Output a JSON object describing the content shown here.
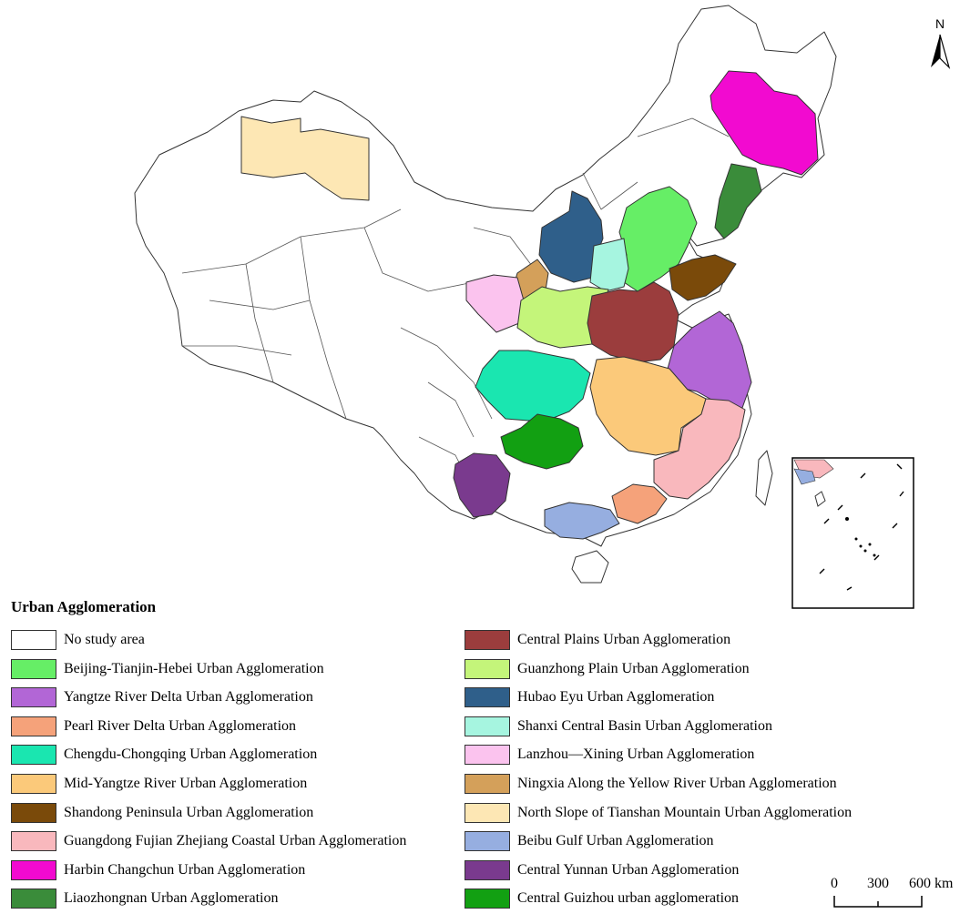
{
  "legend": {
    "title": "Urban Agglomeration",
    "items": [
      {
        "label": "No study area",
        "color": "#ffffff"
      },
      {
        "label": "Beijing-Tianjin-Hebei Urban Agglomeration",
        "color": "#66ee66"
      },
      {
        "label": "Yangtze River Delta Urban Agglomeration",
        "color": "#b266d6"
      },
      {
        "label": "Pearl River Delta Urban Agglomeration",
        "color": "#f5a27a"
      },
      {
        "label": "Chengdu-Chongqing Urban Agglomeration",
        "color": "#1ae6b0"
      },
      {
        "label": "Mid-Yangtze River Urban Agglomeration",
        "color": "#fbc97a"
      },
      {
        "label": "Shandong Peninsula Urban Agglomeration",
        "color": "#7a4a0a"
      },
      {
        "label": "Guangdong Fujian Zhejiang Coastal Urban Agglomeration",
        "color": "#f9b8bd"
      },
      {
        "label": "Harbin Changchun Urban Agglomeration",
        "color": "#f20ad0"
      },
      {
        "label": "Liaozhongnan Urban Agglomeration",
        "color": "#3a8c3a"
      },
      {
        "label": "Central Plains Urban Agglomeration",
        "color": "#9b3d3d"
      },
      {
        "label": "Guanzhong Plain Urban Agglomeration",
        "color": "#c4f57a"
      },
      {
        "label": "Hubao Eyu Urban Agglomeration",
        "color": "#2f5f8a"
      },
      {
        "label": "Shanxi Central Basin Urban Agglomeration",
        "color": "#a6f5e0"
      },
      {
        "label": "Lanzhou—Xining Urban Agglomeration",
        "color": "#fbc3ee"
      },
      {
        "label": "Ningxia Along the Yellow River Urban Agglomeration",
        "color": "#d4a05a"
      },
      {
        "label": "North Slope of Tianshan Mountain Urban Agglomeration",
        "color": "#fde7b4"
      },
      {
        "label": "Beibu Gulf Urban Agglomeration",
        "color": "#96aee0"
      },
      {
        "label": "Central Yunnan Urban Agglomeration",
        "color": "#7a3a8e"
      },
      {
        "label": "Central Guizhou urban agglomeration",
        "color": "#12a012"
      }
    ]
  },
  "north_arrow": {
    "label": "N"
  },
  "scale_bar": {
    "ticks": [
      "0",
      "300",
      "600 km"
    ]
  }
}
